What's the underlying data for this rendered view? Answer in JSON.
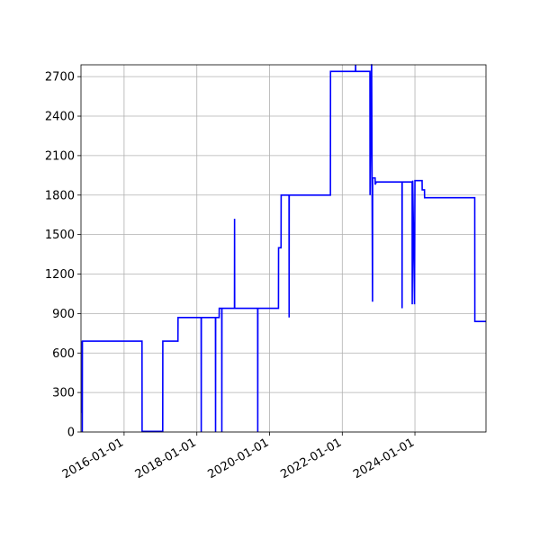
{
  "chart_data": {
    "type": "line",
    "x": [
      "2014-10-28",
      "2014-11-04",
      "2014-11-05",
      "2014-11-07",
      "2014-11-08",
      "2016-06-29",
      "2016-06-30",
      "2017-01-23",
      "2017-01-24",
      "2017-06-25",
      "2017-06-26",
      "2018-02-13",
      "2018-02-14",
      "2018-02-15",
      "2018-07-07",
      "2018-07-08",
      "2018-07-09",
      "2018-08-13",
      "2018-08-14",
      "2018-09-08",
      "2018-09-09",
      "2018-09-10",
      "2019-01-14",
      "2019-01-15",
      "2019-01-16",
      "2019-09-04",
      "2019-09-05",
      "2019-09-06",
      "2020-03-31",
      "2020-04-01",
      "2020-04-26",
      "2020-04-27",
      "2020-07-15",
      "2020-07-16",
      "2020-07-17",
      "2021-09-04",
      "2021-09-05",
      "2022-05-14",
      "2022-05-15",
      "2022-05-16",
      "2022-10-06",
      "2022-10-07",
      "2022-10-22",
      "2022-10-23",
      "2022-11-01",
      "2022-11-02",
      "2022-11-03",
      "2022-11-27",
      "2022-11-28",
      "2022-12-10",
      "2023-08-24",
      "2023-08-25",
      "2023-08-26",
      "2023-12-04",
      "2023-12-05",
      "2023-12-10",
      "2023-12-28",
      "2024-01-01",
      "2024-01-02",
      "2024-03-13",
      "2024-03-14",
      "2024-04-06",
      "2024-04-07",
      "2025-08-24",
      "2025-08-25",
      "2025-12-15"
    ],
    "series": [
      {
        "color": "#0000ff",
        "values": [
          150,
          150,
          690,
          0,
          690,
          690,
          5,
          5,
          690,
          690,
          870,
          870,
          0,
          870,
          870,
          0,
          870,
          870,
          940,
          940,
          0,
          940,
          940,
          1620,
          940,
          940,
          0,
          940,
          940,
          1400,
          1400,
          1800,
          1800,
          870,
          1800,
          1800,
          2740,
          2740,
          2790,
          2740,
          2740,
          1800,
          2790,
          2790,
          990,
          1930,
          1930,
          1930,
          1880,
          1900,
          1900,
          940,
          1900,
          1900,
          970,
          1910,
          970,
          1910,
          1910,
          1910,
          1840,
          1840,
          1780,
          1780,
          840,
          840
        ]
      }
    ],
    "xlim": [
      "2014-10-25",
      "2025-12-15"
    ],
    "xticks": [
      "2016-01-01",
      "2018-01-01",
      "2020-01-01",
      "2022-01-01",
      "2024-01-01"
    ],
    "ylim": [
      0,
      2790
    ],
    "yticks": [
      0,
      300,
      600,
      900,
      1200,
      1500,
      1800,
      2100,
      2400,
      2700
    ],
    "grid": true
  }
}
